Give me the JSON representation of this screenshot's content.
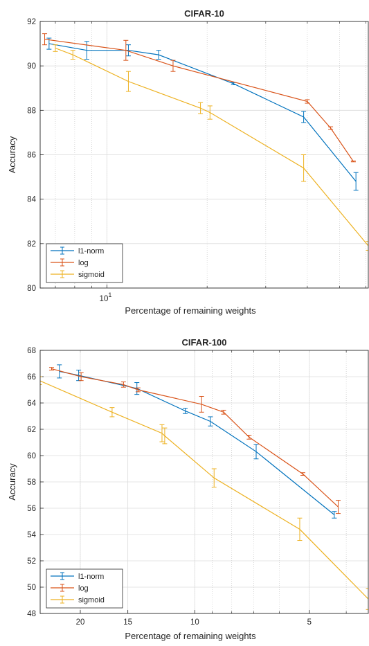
{
  "colors": {
    "l1_norm": "#0072bd",
    "log": "#d95319",
    "sigmoid": "#edb120"
  },
  "chart_data": [
    {
      "type": "line",
      "title": "CIFAR-10",
      "xlabel": "Percentage of remaining weights",
      "ylabel": "Accuracy",
      "x_scale": "log",
      "xlim": [
        6.3,
        61
      ],
      "ylim": [
        80,
        92
      ],
      "y_ticks": [
        "80",
        "82",
        "84",
        "86",
        "88",
        "90",
        "92"
      ],
      "x_tick_label": {
        "base": "10",
        "exponent": "1"
      },
      "grid": true,
      "legend_position": "bottom-left",
      "series": [
        {
          "name": "l1-norm",
          "color_key": "l1_norm",
          "x": [
            6.7,
            8.7,
            11.6,
            14.3,
            24,
            39,
            56
          ],
          "y": [
            91.0,
            90.7,
            90.7,
            90.5,
            89.2,
            87.7,
            84.8
          ],
          "err": [
            0.25,
            0.4,
            0.25,
            0.2,
            0.05,
            0.25,
            0.4
          ]
        },
        {
          "name": "log",
          "color_key": "log",
          "x": [
            6.5,
            11.4,
            15.8,
            40,
            47,
            55
          ],
          "y": [
            91.2,
            90.7,
            90.0,
            88.4,
            87.2,
            85.7
          ],
          "err": [
            0.25,
            0.45,
            0.25,
            0.08,
            0.06,
            0.02
          ]
        },
        {
          "name": "sigmoid",
          "color_key": "sigmoid",
          "x": [
            7.0,
            7.9,
            11.6,
            19.1,
            20.4,
            39,
            61
          ],
          "y": [
            90.8,
            90.5,
            89.3,
            88.1,
            87.9,
            85.4,
            81.9
          ],
          "err": [
            0.15,
            0.2,
            0.45,
            0.25,
            0.3,
            0.6,
            0.2
          ]
        }
      ]
    },
    {
      "type": "line",
      "title": "CIFAR-100",
      "xlabel": "Percentage of remaining weights",
      "ylabel": "Accuracy",
      "x_scale": "log",
      "x_reversed": true,
      "xlim": [
        25.5,
        3.5
      ],
      "ylim": [
        48,
        68
      ],
      "y_ticks": [
        "48",
        "50",
        "52",
        "54",
        "56",
        "58",
        "60",
        "62",
        "64",
        "66",
        "68"
      ],
      "x_ticks": [
        {
          "value": 20,
          "label": "20"
        },
        {
          "value": 15,
          "label": "15"
        },
        {
          "value": 10,
          "label": "10"
        },
        {
          "value": 5,
          "label": "5"
        }
      ],
      "grid": true,
      "legend_position": "bottom-left",
      "series": [
        {
          "name": "l1-norm",
          "color_key": "l1_norm",
          "x": [
            22.7,
            20.2,
            14.2,
            10.6,
            9.1,
            6.9,
            4.3
          ],
          "y": [
            66.4,
            66.1,
            65.1,
            63.4,
            62.6,
            60.3,
            55.5
          ],
          "err": [
            0.5,
            0.4,
            0.45,
            0.2,
            0.35,
            0.55,
            0.25
          ]
        },
        {
          "name": "log",
          "color_key": "log",
          "x": [
            23.8,
            19.9,
            15.4,
            14.1,
            9.6,
            8.4,
            7.2,
            5.2,
            4.2
          ],
          "y": [
            66.6,
            66.0,
            65.4,
            65.0,
            63.9,
            63.3,
            61.4,
            58.6,
            56.1
          ],
          "err": [
            0.1,
            0.3,
            0.2,
            0.15,
            0.6,
            0.15,
            0.15,
            0.1,
            0.5
          ]
        },
        {
          "name": "sigmoid",
          "color_key": "sigmoid",
          "x": [
            25.6,
            16.5,
            12.2,
            12.0,
            8.9,
            5.3,
            3.5
          ],
          "y": [
            65.7,
            63.3,
            61.7,
            61.5,
            58.3,
            54.4,
            49.1
          ],
          "err": [
            0.3,
            0.35,
            0.65,
            0.6,
            0.7,
            0.85,
            0.8
          ]
        }
      ]
    }
  ]
}
